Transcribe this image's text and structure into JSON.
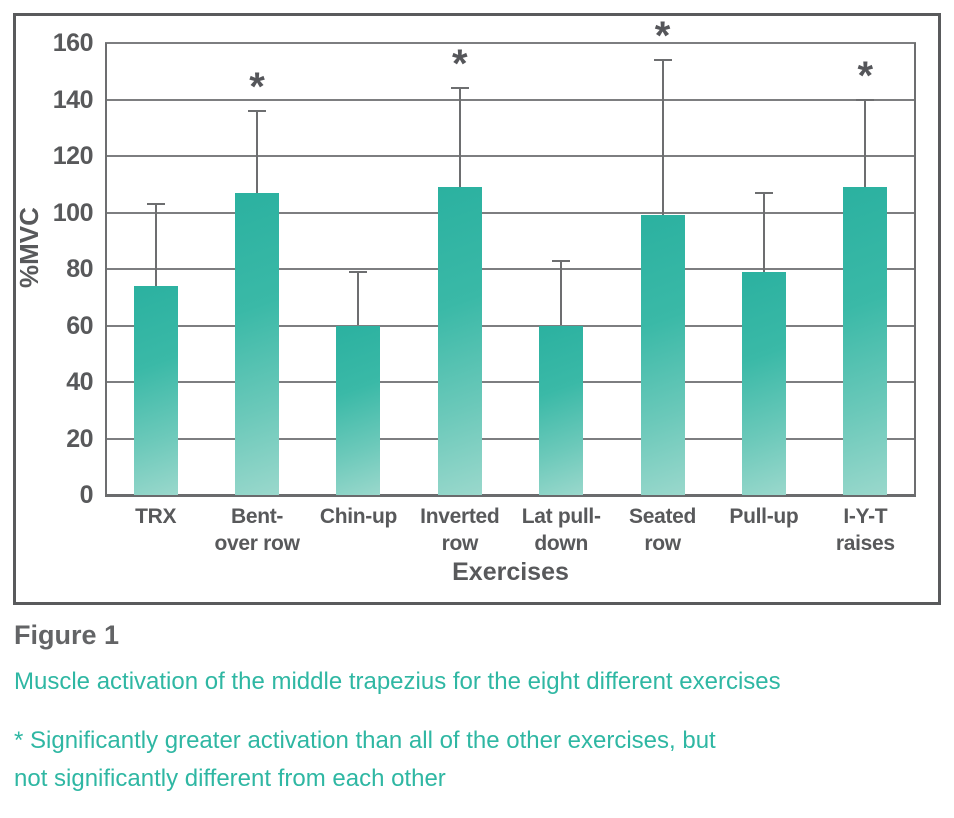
{
  "figure": {
    "label": "Figure 1",
    "caption": "Muscle activation of the middle trapezius for the eight different exercises",
    "footnote_lines": [
      "* Significantly greater activation than all of the other exercises, but",
      "not significantly different from each other"
    ]
  },
  "colors": {
    "bar_teal_dark": "#2bb1a0",
    "bar_teal_light": "#9ad8cc",
    "axis_text_gray": "#58595b",
    "grid_gray": "#7d7e80",
    "frame_gray": "#595a5c",
    "caption_teal": "#2fb7a3"
  },
  "chart_data": {
    "type": "bar",
    "title": "",
    "xlabel": "Exercises",
    "ylabel": "%MVC",
    "ylim": [
      0,
      160
    ],
    "yticks": [
      0,
      20,
      40,
      60,
      80,
      100,
      120,
      140,
      160
    ],
    "grid": true,
    "legend": "none",
    "significance_marker": "*",
    "categories": [
      "TRX",
      "Bent-over row",
      "Chin-up",
      "Inverted row",
      "Lat pull-down",
      "Seated row",
      "Pull-up",
      "I-Y-T raises"
    ],
    "category_label_lines": [
      [
        "TRX"
      ],
      [
        "Bent-",
        "over row"
      ],
      [
        "Chin-up"
      ],
      [
        "Inverted",
        "row"
      ],
      [
        "Lat pull-",
        "down"
      ],
      [
        "Seated",
        "row"
      ],
      [
        "Pull-up"
      ],
      [
        "I-Y-T",
        "raises"
      ]
    ],
    "values": [
      74,
      107,
      60,
      109,
      60,
      99,
      79,
      109
    ],
    "error_top": [
      103,
      136,
      79,
      144,
      83,
      154,
      107,
      140
    ],
    "significant": [
      false,
      true,
      false,
      true,
      false,
      true,
      false,
      true
    ]
  }
}
